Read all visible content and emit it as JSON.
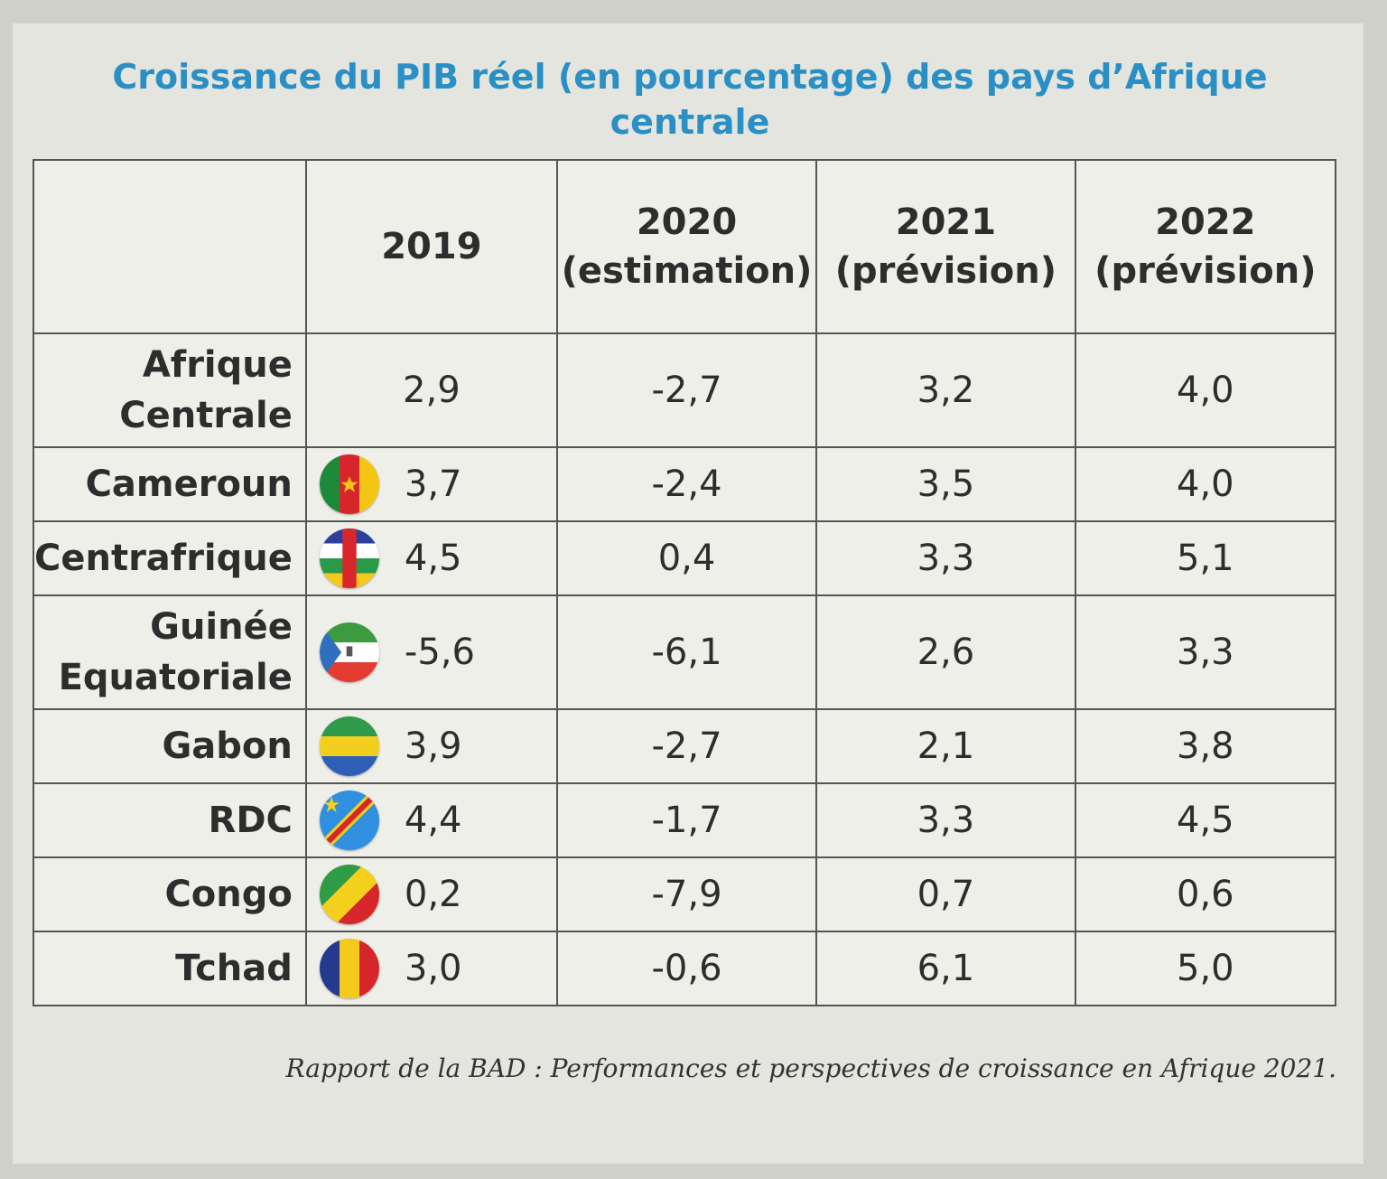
{
  "title": "Croissance du PIB réel (en pourcentage) des pays d’Afrique centrale",
  "columns": [
    "",
    "2019",
    "2020\n(estimation)",
    "2021\n(prévision)",
    "2022\n(prévision)"
  ],
  "rows": [
    {
      "country": "Afrique\nCentrale",
      "flag": "",
      "v2019": "2,9",
      "v2020": "-2,7",
      "v2021": "3,2",
      "v2022": "4,0"
    },
    {
      "country": "Cameroun",
      "flag": "cameroon-flag-icon",
      "v2019": "3,7",
      "v2020": "-2,4",
      "v2021": "3,5",
      "v2022": "4,0"
    },
    {
      "country": "Centrafrique",
      "flag": "central-african-republic-flag-icon",
      "v2019": "4,5",
      "v2020": "0,4",
      "v2021": "3,3",
      "v2022": "5,1"
    },
    {
      "country": "Guinée\nEquatoriale",
      "flag": "equatorial-guinea-flag-icon",
      "v2019": "-5,6",
      "v2020": "-6,1",
      "v2021": "2,6",
      "v2022": "3,3"
    },
    {
      "country": "Gabon",
      "flag": "gabon-flag-icon",
      "v2019": "3,9",
      "v2020": "-2,7",
      "v2021": "2,1",
      "v2022": "3,8"
    },
    {
      "country": "RDC",
      "flag": "drc-flag-icon",
      "v2019": "4,4",
      "v2020": "-1,7",
      "v2021": "3,3",
      "v2022": "4,5"
    },
    {
      "country": "Congo",
      "flag": "congo-flag-icon",
      "v2019": "0,2",
      "v2020": "-7,9",
      "v2021": "0,7",
      "v2022": "0,6"
    },
    {
      "country": "Tchad",
      "flag": "chad-flag-icon",
      "v2019": "3,0",
      "v2020": "-0,6",
      "v2021": "6,1",
      "v2022": "5,0"
    }
  ],
  "source": "Rapport de la BAD : Performances et perspectives de croissance en Afrique 2021.",
  "colors": {
    "title": "#2a8fc4",
    "border": "#555555",
    "paper": "#e4e5df"
  }
}
